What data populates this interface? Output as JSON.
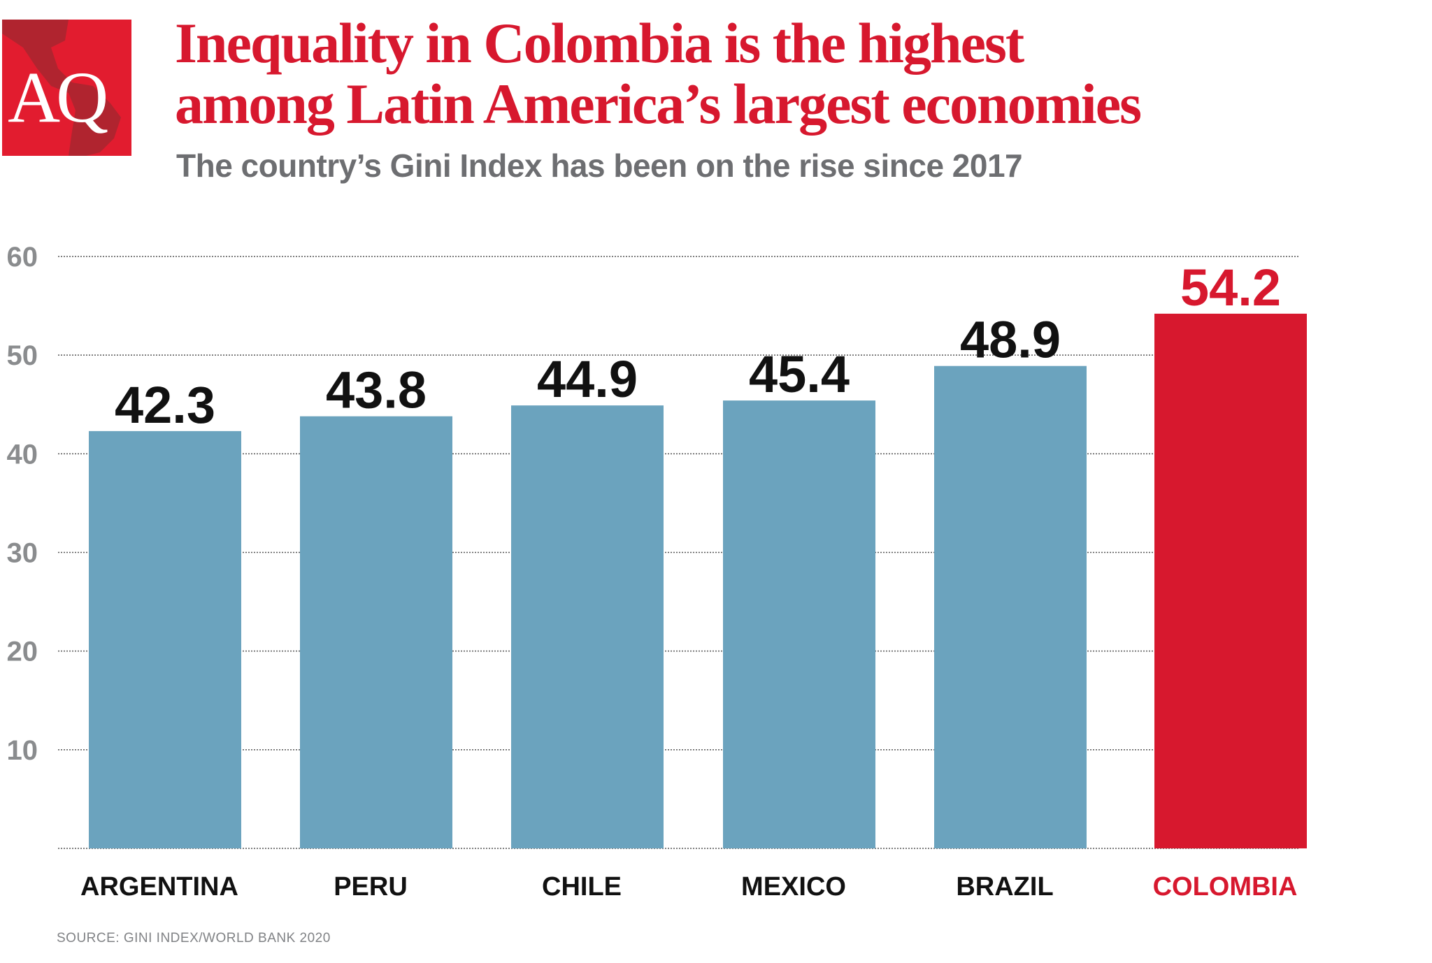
{
  "logo": {
    "text": "AQ",
    "color": "#e21c2f"
  },
  "title_line1": "Inequality in Colombia is  the highest",
  "title_line2": "among Latin America’s largest economies",
  "subtitle": "The country’s Gini Index has been on the rise since 2017",
  "source": "SOURCE: GINI INDEX/WORLD BANK 2020",
  "chart_data": {
    "type": "bar",
    "categories": [
      "ARGENTINA",
      "PERU",
      "CHILE",
      "MEXICO",
      "BRAZIL",
      "COLOMBIA"
    ],
    "values": [
      42.3,
      43.8,
      44.9,
      45.4,
      48.9,
      54.2
    ],
    "value_labels": [
      "42.3",
      "43.8",
      "44.9",
      "45.4",
      "48.9",
      "54.2"
    ],
    "highlight": "COLOMBIA",
    "colors": {
      "default": "#6ba3be",
      "highlight": "#d7182e"
    },
    "ylim": [
      0,
      60
    ],
    "yticks": [
      "10",
      "20",
      "30",
      "40",
      "50",
      "60"
    ],
    "grid": true,
    "xlabel": "",
    "ylabel": ""
  }
}
